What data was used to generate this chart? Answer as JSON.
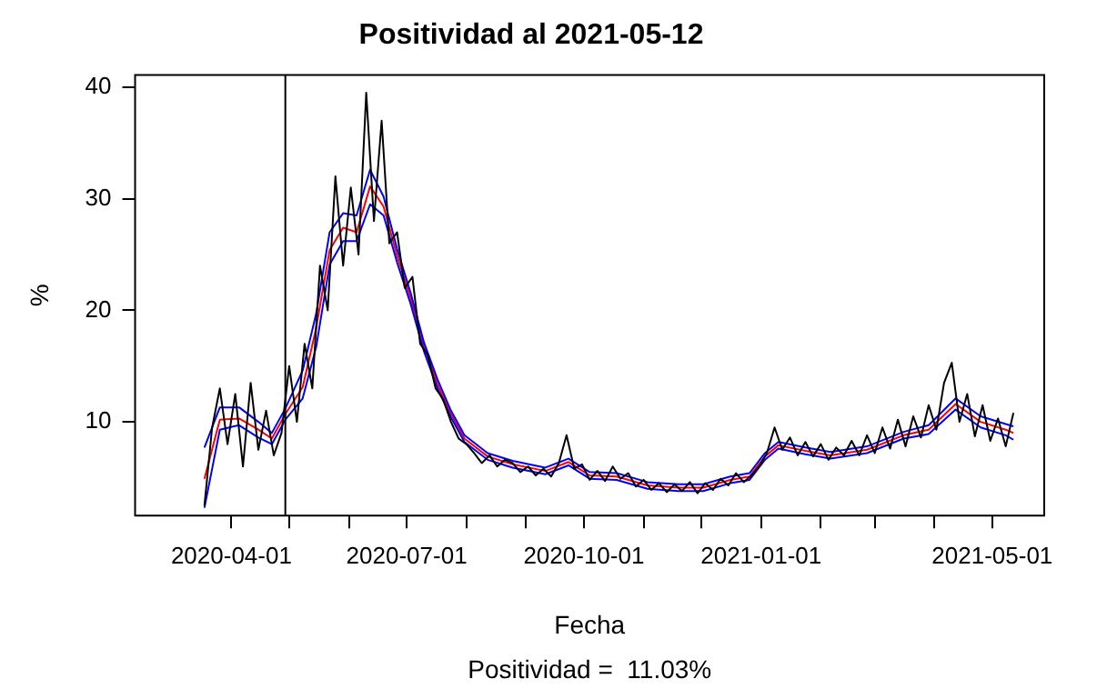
{
  "chart_data": {
    "type": "line",
    "title": "Positividad al 2021-05-12",
    "xlabel": "Fecha",
    "ylabel": "%",
    "annotations": [
      "Positividad =  11.03%"
    ],
    "xlim": [
      "2020-02-11",
      "2021-05-28"
    ],
    "xticks": [
      {
        "value": "2020-04-01",
        "label": "2020-04-01"
      },
      {
        "value": "2020-05-01",
        "label": null
      },
      {
        "value": "2020-06-01",
        "label": null
      },
      {
        "value": "2020-07-01",
        "label": "2020-07-01"
      },
      {
        "value": "2020-08-01",
        "label": null
      },
      {
        "value": "2020-09-01",
        "label": null
      },
      {
        "value": "2020-10-01",
        "label": "2020-10-01"
      },
      {
        "value": "2020-11-01",
        "label": null
      },
      {
        "value": "2020-12-01",
        "label": null
      },
      {
        "value": "2021-01-01",
        "label": "2021-01-01"
      },
      {
        "value": "2021-02-01",
        "label": null
      },
      {
        "value": "2021-03-01",
        "label": null
      },
      {
        "value": "2021-04-01",
        "label": null
      },
      {
        "value": "2021-05-01",
        "label": "2021-05-01"
      }
    ],
    "ylim": [
      1.6,
      41.1
    ],
    "yticks": [
      10,
      20,
      30,
      40
    ],
    "grid": false,
    "legend": false,
    "marker": "none",
    "line_style": "solid",
    "ref_lines": [
      {
        "axis": "x",
        "value": "2020-04-29",
        "color": "#000000"
      }
    ],
    "series": [
      {
        "color": "#000000",
        "x": [
          "2020-03-18",
          "2020-03-22",
          "2020-03-26",
          "2020-03-30",
          "2020-04-03",
          "2020-04-07",
          "2020-04-11",
          "2020-04-15",
          "2020-04-19",
          "2020-04-23",
          "2020-04-27",
          "2020-05-01",
          "2020-05-05",
          "2020-05-09",
          "2020-05-13",
          "2020-05-17",
          "2020-05-21",
          "2020-05-25",
          "2020-05-29",
          "2020-06-02",
          "2020-06-06",
          "2020-06-10",
          "2020-06-14",
          "2020-06-18",
          "2020-06-22",
          "2020-06-26",
          "2020-06-30",
          "2020-07-04",
          "2020-07-08",
          "2020-07-12",
          "2020-07-16",
          "2020-07-20",
          "2020-07-24",
          "2020-07-28",
          "2020-08-01",
          "2020-08-05",
          "2020-08-09",
          "2020-08-13",
          "2020-08-17",
          "2020-08-21",
          "2020-08-25",
          "2020-08-29",
          "2020-09-02",
          "2020-09-06",
          "2020-09-10",
          "2020-09-14",
          "2020-09-18",
          "2020-09-22",
          "2020-09-26",
          "2020-09-30",
          "2020-10-04",
          "2020-10-08",
          "2020-10-12",
          "2020-10-16",
          "2020-10-20",
          "2020-10-24",
          "2020-10-28",
          "2020-11-01",
          "2020-11-05",
          "2020-11-09",
          "2020-11-13",
          "2020-11-17",
          "2020-11-21",
          "2020-11-25",
          "2020-11-29",
          "2020-12-03",
          "2020-12-07",
          "2020-12-11",
          "2020-12-15",
          "2020-12-19",
          "2020-12-23",
          "2020-12-27",
          "2020-12-31",
          "2021-01-04",
          "2021-01-08",
          "2021-01-12",
          "2021-01-16",
          "2021-01-20",
          "2021-01-24",
          "2021-01-28",
          "2021-02-01",
          "2021-02-05",
          "2021-02-09",
          "2021-02-13",
          "2021-02-17",
          "2021-02-21",
          "2021-02-25",
          "2021-03-01",
          "2021-03-05",
          "2021-03-09",
          "2021-03-13",
          "2021-03-17",
          "2021-03-21",
          "2021-03-25",
          "2021-03-29",
          "2021-04-02",
          "2021-04-06",
          "2021-04-10",
          "2021-04-14",
          "2021-04-18",
          "2021-04-22",
          "2021-04-26",
          "2021-04-30",
          "2021-05-04",
          "2021-05-08",
          "2021-05-12"
        ],
        "values": [
          2.5,
          9.5,
          13,
          8,
          12.5,
          6,
          13.5,
          7.5,
          11,
          7,
          9,
          15,
          10,
          17,
          13,
          24,
          20,
          32,
          24,
          31,
          25,
          39.5,
          28,
          37,
          26,
          27,
          22,
          23,
          17,
          16,
          13,
          12,
          10,
          8.5,
          8,
          7.2,
          6.3,
          7,
          6,
          6.6,
          6.3,
          5.5,
          6,
          5.2,
          5.8,
          5.1,
          6.3,
          8.8,
          5.8,
          6.2,
          4.8,
          5.6,
          4.7,
          6.0,
          4.9,
          5.4,
          4.2,
          4.8,
          3.9,
          4.5,
          3.7,
          4.4,
          3.8,
          4.6,
          3.6,
          4.5,
          3.9,
          4.9,
          4.3,
          5.4,
          4.6,
          5.2,
          6.0,
          7.2,
          9.5,
          7.5,
          8.6,
          7.0,
          8.2,
          6.9,
          8.0,
          6.6,
          7.7,
          7.0,
          8.3,
          7.0,
          8.8,
          7.2,
          9.5,
          7.6,
          10.2,
          7.8,
          10.5,
          8.6,
          11.5,
          9.3,
          13.5,
          15.3,
          10.0,
          12.5,
          8.7,
          11.5,
          8.3,
          10.3,
          7.8,
          10.8
        ]
      },
      {
        "color": "#0000ff",
        "x": [
          "2020-03-18",
          "2020-03-26",
          "2020-04-05",
          "2020-04-15",
          "2020-04-22",
          "2020-04-29",
          "2020-05-08",
          "2020-05-15",
          "2020-05-22",
          "2020-05-29",
          "2020-06-05",
          "2020-06-12",
          "2020-06-19",
          "2020-06-26",
          "2020-07-03",
          "2020-07-10",
          "2020-07-17",
          "2020-07-24",
          "2020-07-31",
          "2020-08-12",
          "2020-08-25",
          "2020-09-11",
          "2020-09-23",
          "2020-10-04",
          "2020-10-18",
          "2020-11-03",
          "2020-11-19",
          "2020-12-02",
          "2020-12-16",
          "2020-12-26",
          "2021-01-03",
          "2021-01-10",
          "2021-01-24",
          "2021-02-06",
          "2021-02-25",
          "2021-03-16",
          "2021-03-29",
          "2021-04-12",
          "2021-04-25",
          "2021-05-08",
          "2021-05-12"
        ],
        "values": [
          7.7,
          11.3,
          11.3,
          10.0,
          9.0,
          11.2,
          14.6,
          19.7,
          27.0,
          28.7,
          28.5,
          32.6,
          30.2,
          25.5,
          21.6,
          17.1,
          13.8,
          11.0,
          8.8,
          7.2,
          6.5,
          5.9,
          6.7,
          5.5,
          5.4,
          4.6,
          4.4,
          4.4,
          5.1,
          5.4,
          7.2,
          8.2,
          7.7,
          7.3,
          7.8,
          9.1,
          9.7,
          12.1,
          10.5,
          9.8,
          9.6
        ]
      },
      {
        "color": "#0000ff",
        "x": [
          "2020-03-18",
          "2020-03-26",
          "2020-04-05",
          "2020-04-15",
          "2020-04-22",
          "2020-04-29",
          "2020-05-08",
          "2020-05-15",
          "2020-05-22",
          "2020-05-29",
          "2020-06-05",
          "2020-06-12",
          "2020-06-19",
          "2020-06-26",
          "2020-07-03",
          "2020-07-10",
          "2020-07-17",
          "2020-07-24",
          "2020-07-31",
          "2020-08-12",
          "2020-08-25",
          "2020-09-11",
          "2020-09-23",
          "2020-10-04",
          "2020-10-18",
          "2020-11-03",
          "2020-11-19",
          "2020-12-02",
          "2020-12-16",
          "2020-12-26",
          "2021-01-03",
          "2021-01-10",
          "2021-01-24",
          "2021-02-06",
          "2021-02-25",
          "2021-03-16",
          "2021-03-29",
          "2021-04-12",
          "2021-04-25",
          "2021-05-08",
          "2021-05-12"
        ],
        "values": [
          2.3,
          9.3,
          9.7,
          8.6,
          8.0,
          10.2,
          12.1,
          16.7,
          24.1,
          26.2,
          26.2,
          29.5,
          28.5,
          24.3,
          20.6,
          16.3,
          13.0,
          10.4,
          8.2,
          6.6,
          5.9,
          5.3,
          6.1,
          4.9,
          4.8,
          4.0,
          3.8,
          3.8,
          4.5,
          4.8,
          6.6,
          7.6,
          7.1,
          6.7,
          7.2,
          8.5,
          8.9,
          11.1,
          9.5,
          8.8,
          8.4
        ]
      },
      {
        "color": "#ff0000",
        "x": [
          "2020-03-18",
          "2020-03-26",
          "2020-04-05",
          "2020-04-15",
          "2020-04-22",
          "2020-04-29",
          "2020-05-08",
          "2020-05-15",
          "2020-05-22",
          "2020-05-29",
          "2020-06-05",
          "2020-06-12",
          "2020-06-19",
          "2020-06-26",
          "2020-07-03",
          "2020-07-10",
          "2020-07-17",
          "2020-07-24",
          "2020-07-31",
          "2020-08-12",
          "2020-08-25",
          "2020-09-11",
          "2020-09-23",
          "2020-10-04",
          "2020-10-18",
          "2020-11-03",
          "2020-11-19",
          "2020-12-02",
          "2020-12-16",
          "2020-12-26",
          "2021-01-03",
          "2021-01-10",
          "2021-01-24",
          "2021-02-06",
          "2021-02-25",
          "2021-03-16",
          "2021-03-29",
          "2021-04-12",
          "2021-04-25",
          "2021-05-08",
          "2021-05-12"
        ],
        "values": [
          4.9,
          10.2,
          10.3,
          9.3,
          8.5,
          10.7,
          13.1,
          18.4,
          25.4,
          27.4,
          27.0,
          31.1,
          29.3,
          24.9,
          21.1,
          16.7,
          13.4,
          10.7,
          8.5,
          6.9,
          6.2,
          5.6,
          6.4,
          5.2,
          5.1,
          4.3,
          4.1,
          4.1,
          4.8,
          5.1,
          6.9,
          7.9,
          7.4,
          7.0,
          7.5,
          8.8,
          9.3,
          11.6,
          10.0,
          9.3,
          9.0
        ]
      }
    ]
  }
}
